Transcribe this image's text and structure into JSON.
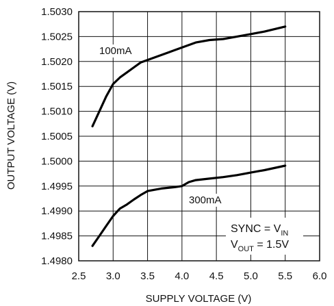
{
  "chart_data": {
    "type": "line",
    "xlabel": "SUPPLY VOLTAGE (V)",
    "ylabel": "OUTPUT VOLTAGE (V)",
    "xlim": [
      2.5,
      6.0
    ],
    "ylim": [
      1.498,
      1.503
    ],
    "grid": true,
    "x_ticks": [
      "2.5",
      "3.0",
      "3.5",
      "4.0",
      "4.5",
      "5.0",
      "5.5",
      "6.0"
    ],
    "y_ticks": [
      "1.4980",
      "1.4985",
      "1.4990",
      "1.4995",
      "1.5000",
      "1.5005",
      "1.5010",
      "1.5015",
      "1.5020",
      "1.5025",
      "1.5030"
    ],
    "series": [
      {
        "name": "100mA",
        "x": [
          2.7,
          2.8,
          2.9,
          3.0,
          3.1,
          3.2,
          3.3,
          3.4,
          3.5,
          3.6,
          3.8,
          4.0,
          4.2,
          4.4,
          4.6,
          4.8,
          5.0,
          5.2,
          5.5
        ],
        "y": [
          1.5007,
          1.501,
          1.5013,
          1.50155,
          1.50168,
          1.50178,
          1.50188,
          1.50198,
          1.50203,
          1.50208,
          1.50218,
          1.50228,
          1.50238,
          1.50243,
          1.50245,
          1.5025,
          1.50255,
          1.5026,
          1.5027
        ]
      },
      {
        "name": "300mA",
        "x": [
          2.7,
          2.8,
          2.9,
          3.0,
          3.1,
          3.2,
          3.3,
          3.4,
          3.5,
          3.7,
          3.9,
          4.0,
          4.1,
          4.2,
          4.4,
          4.6,
          4.8,
          5.0,
          5.2,
          5.5
        ],
        "y": [
          1.4983,
          1.4985,
          1.4987,
          1.4989,
          1.49905,
          1.49913,
          1.49923,
          1.49932,
          1.4994,
          1.49945,
          1.49948,
          1.4995,
          1.49958,
          1.49962,
          1.49965,
          1.49968,
          1.49972,
          1.49977,
          1.49982,
          1.49991
        ]
      }
    ],
    "annotation": {
      "line1_prefix": "SYNC = V",
      "line1_sub": "IN",
      "line2_prefix": "V",
      "line2_sub": "OUT",
      "line2_suffix": " = 1.5V"
    }
  }
}
